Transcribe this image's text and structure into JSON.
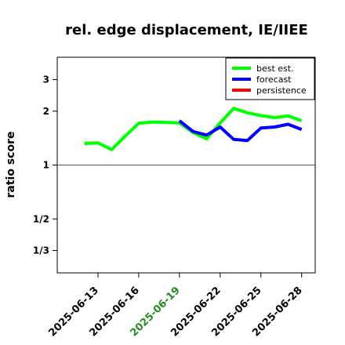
{
  "chart_data": {
    "type": "line",
    "title": "rel. edge displacement, IE/IIEE",
    "xlabel": "",
    "ylabel": "ratio score",
    "y_scale": "log",
    "ylim": [
      0.25,
      4.0
    ],
    "reference_line": 1,
    "y_ticks": [
      {
        "value": 3,
        "label": "3"
      },
      {
        "value": 2,
        "label": "2"
      },
      {
        "value": 1,
        "label": "1"
      },
      {
        "value": 0.5,
        "label": "1/2"
      },
      {
        "value": 0.3333,
        "label": "1/3"
      }
    ],
    "x_range": [
      "2025-06-10",
      "2025-06-29"
    ],
    "x_ticks": [
      {
        "date": "2025-06-13",
        "label": "2025-06-13",
        "color": "#000000"
      },
      {
        "date": "2025-06-16",
        "label": "2025-06-16",
        "color": "#000000"
      },
      {
        "date": "2025-06-19",
        "label": "2025-06-19",
        "color": "#228B22"
      },
      {
        "date": "2025-06-22",
        "label": "2025-06-22",
        "color": "#000000"
      },
      {
        "date": "2025-06-25",
        "label": "2025-06-25",
        "color": "#000000"
      },
      {
        "date": "2025-06-28",
        "label": "2025-06-28",
        "color": "#000000"
      }
    ],
    "legend_position": "top-right",
    "series": [
      {
        "name": "best est.",
        "color": "#00ff00",
        "points": [
          {
            "x": "2025-06-12",
            "y": 1.32
          },
          {
            "x": "2025-06-13",
            "y": 1.33
          },
          {
            "x": "2025-06-14",
            "y": 1.22
          },
          {
            "x": "2025-06-15",
            "y": 1.45
          },
          {
            "x": "2025-06-16",
            "y": 1.71
          },
          {
            "x": "2025-06-17",
            "y": 1.74
          },
          {
            "x": "2025-06-18",
            "y": 1.73
          },
          {
            "x": "2025-06-19",
            "y": 1.72
          },
          {
            "x": "2025-06-20",
            "y": 1.52
          },
          {
            "x": "2025-06-21",
            "y": 1.4
          },
          {
            "x": "2025-06-22",
            "y": 1.72
          },
          {
            "x": "2025-06-23",
            "y": 2.07
          },
          {
            "x": "2025-06-24",
            "y": 1.96
          },
          {
            "x": "2025-06-25",
            "y": 1.89
          },
          {
            "x": "2025-06-26",
            "y": 1.84
          },
          {
            "x": "2025-06-27",
            "y": 1.88
          },
          {
            "x": "2025-06-28",
            "y": 1.77
          }
        ]
      },
      {
        "name": "forecast",
        "color": "#0000ff",
        "points": [
          {
            "x": "2025-06-19",
            "y": 1.77
          },
          {
            "x": "2025-06-20",
            "y": 1.54
          },
          {
            "x": "2025-06-21",
            "y": 1.47
          },
          {
            "x": "2025-06-22",
            "y": 1.63
          },
          {
            "x": "2025-06-23",
            "y": 1.39
          },
          {
            "x": "2025-06-24",
            "y": 1.37
          },
          {
            "x": "2025-06-25",
            "y": 1.61
          },
          {
            "x": "2025-06-26",
            "y": 1.63
          },
          {
            "x": "2025-06-27",
            "y": 1.69
          },
          {
            "x": "2025-06-28",
            "y": 1.58
          }
        ]
      },
      {
        "name": "persistence",
        "color": "#ff0000",
        "points": []
      }
    ]
  }
}
